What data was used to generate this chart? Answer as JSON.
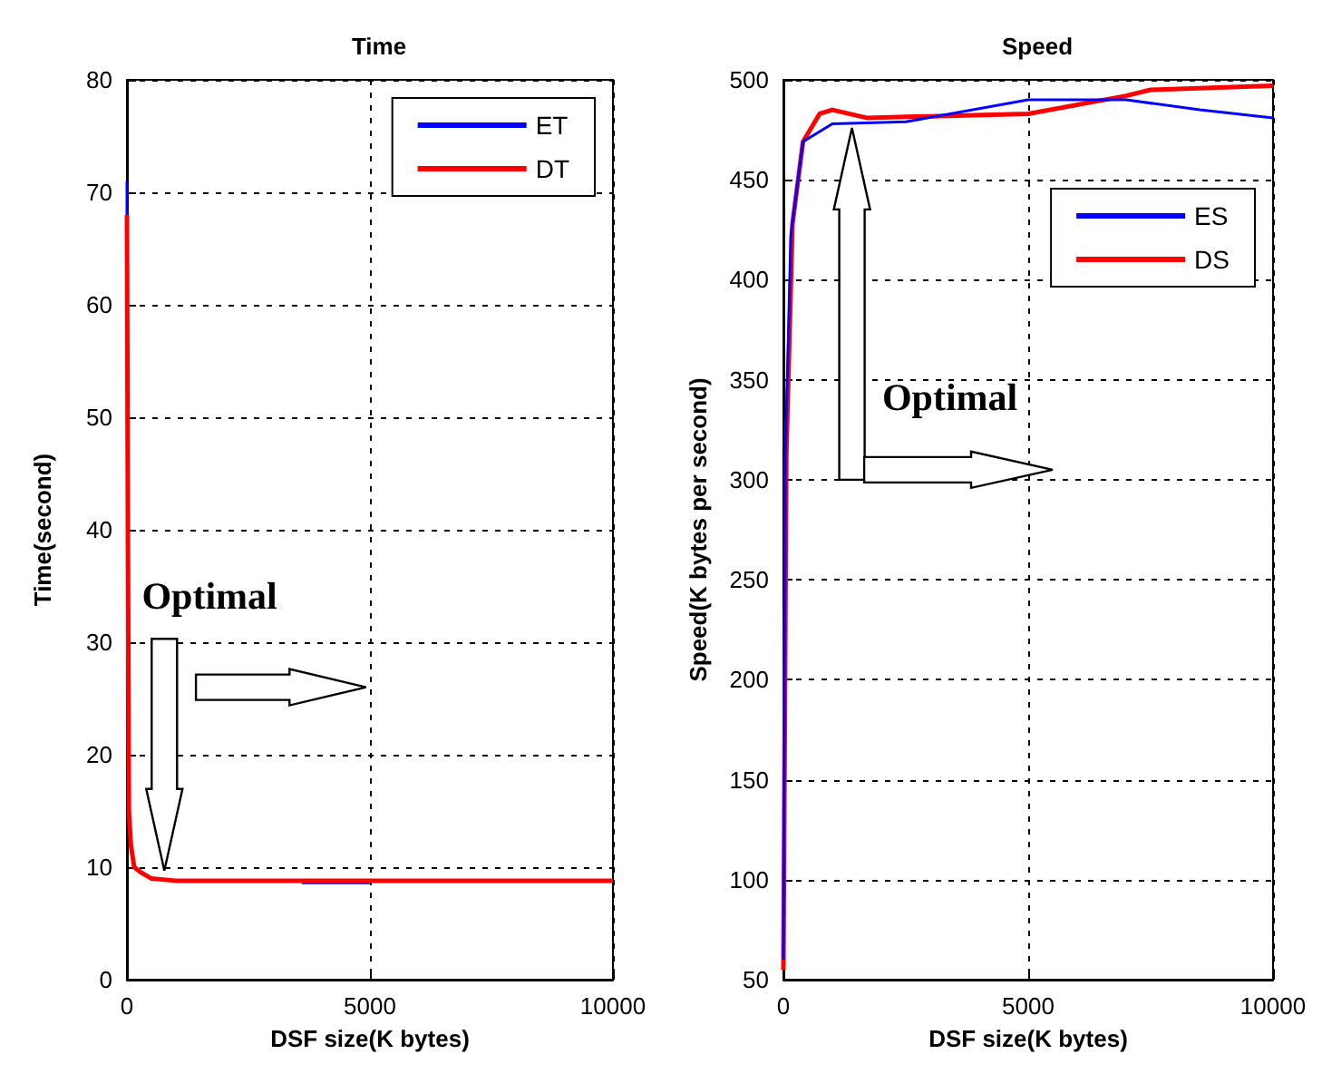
{
  "chart_data": [
    {
      "type": "line",
      "title": "Time",
      "xlabel": "DSF size(K bytes)",
      "ylabel": "Time(second)",
      "xlim": [
        0,
        10000
      ],
      "xticks": [
        0,
        5000,
        10000
      ],
      "ylim": [
        0,
        80
      ],
      "yticks": [
        0,
        10,
        20,
        30,
        40,
        50,
        60,
        70,
        80
      ],
      "grid": true,
      "legend": "top right",
      "annotations": [
        "Optimal"
      ],
      "series": [
        {
          "name": "ET",
          "color": "#0000ff",
          "x": [
            0,
            0,
            2000,
            3600,
            5000
          ],
          "values": [
            71,
            68,
            null,
            8.6,
            8.6
          ]
        },
        {
          "name": "DT",
          "color": "#ff0000",
          "x": [
            0,
            20,
            40,
            80,
            150,
            300,
            500,
            1000,
            10000
          ],
          "values": [
            68,
            40,
            15,
            12,
            10,
            9.5,
            9,
            8.8,
            8.8
          ]
        }
      ]
    },
    {
      "type": "line",
      "title": "Speed",
      "xlabel": "DSF size(K bytes)",
      "ylabel": "Speed(K bytes per second)",
      "xlim": [
        0,
        10000
      ],
      "xticks": [
        0,
        5000,
        10000
      ],
      "ylim": [
        50,
        500
      ],
      "yticks": [
        50,
        100,
        150,
        200,
        250,
        300,
        350,
        400,
        450,
        500
      ],
      "grid": true,
      "legend": "top right",
      "annotations": [
        "Optimal"
      ],
      "series": [
        {
          "name": "ES",
          "color": "#0000ff",
          "x": [
            0,
            30,
            40,
            100,
            150,
            400,
            1000,
            2500,
            5000,
            7000,
            8500,
            10000
          ],
          "values": [
            60,
            250,
            313,
            370,
            422,
            469,
            478,
            479,
            490,
            490,
            485,
            481
          ]
        },
        {
          "name": "DS",
          "color": "#ff0000",
          "x": [
            0,
            60,
            185,
            400,
            740,
            1000,
            1700,
            5000,
            7000,
            7500,
            10000
          ],
          "values": [
            55,
            313,
            428,
            469,
            483,
            485,
            481,
            483,
            492,
            495,
            497
          ]
        }
      ]
    }
  ]
}
